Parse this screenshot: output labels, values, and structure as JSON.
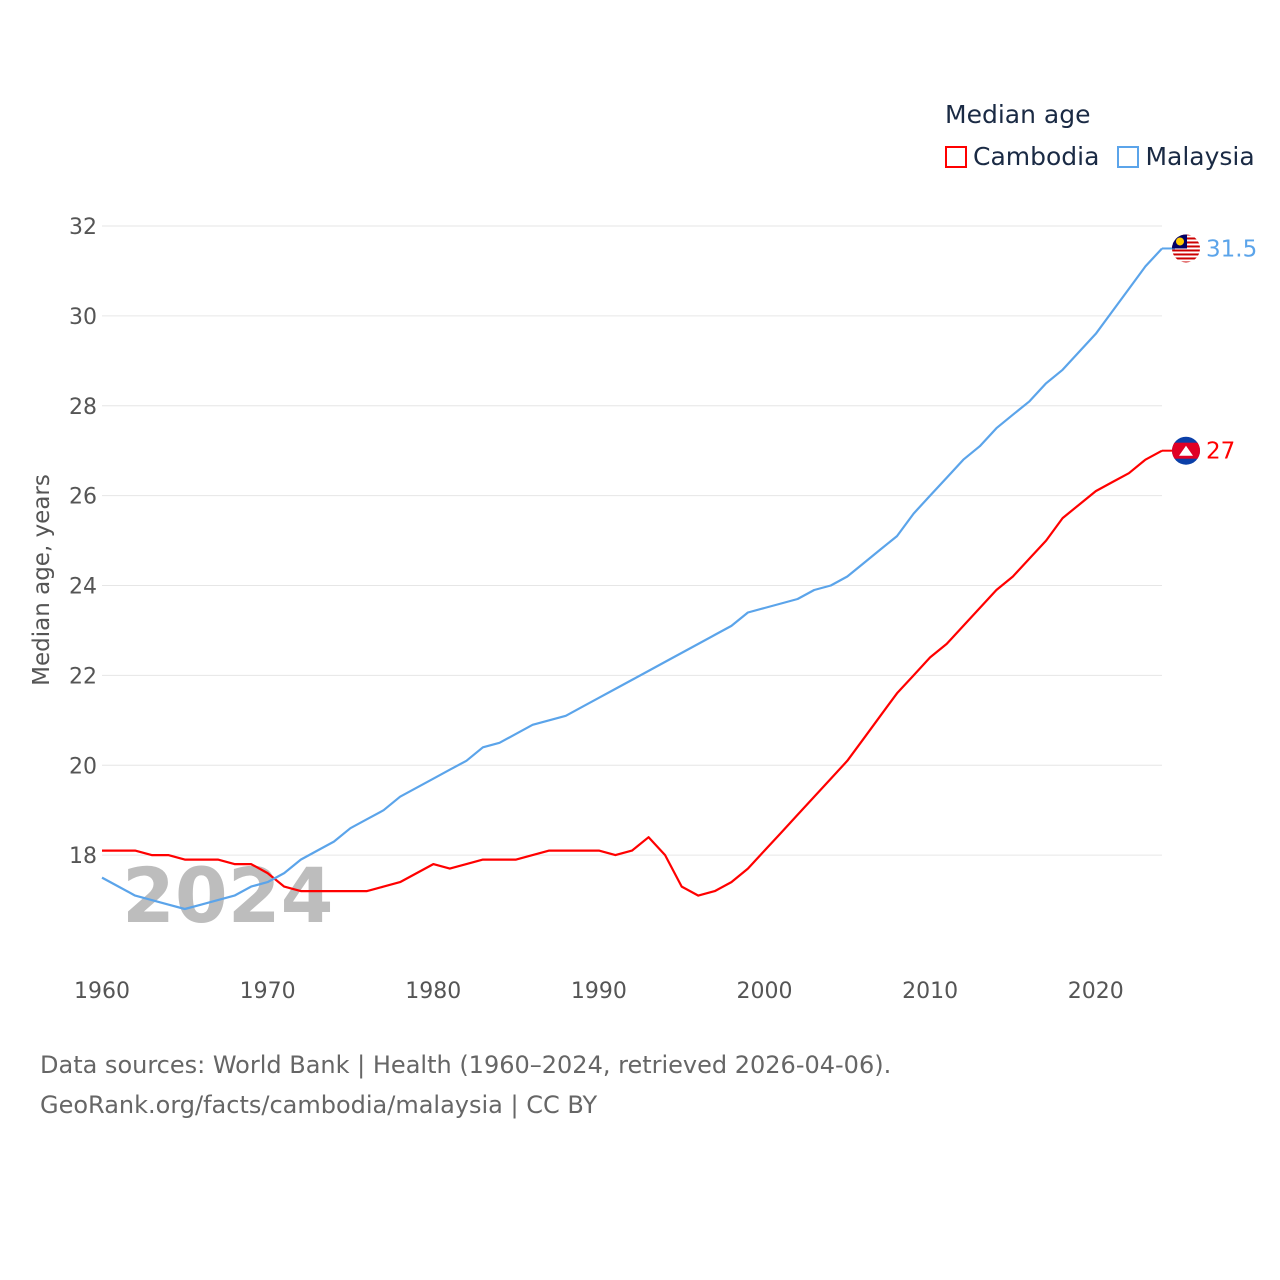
{
  "chart_data": {
    "type": "line",
    "title": "Median age",
    "xlabel": "",
    "ylabel": "Median age, years",
    "xlim": [
      1960,
      2024
    ],
    "ylim": [
      16,
      32
    ],
    "x_ticks": [
      1960,
      1970,
      1980,
      1990,
      2000,
      2010,
      2020
    ],
    "y_ticks": [
      18,
      20,
      22,
      24,
      26,
      28,
      30,
      32
    ],
    "grid": true,
    "legend_position": "top-right",
    "watermark_year": "2024",
    "x": [
      1960,
      1961,
      1962,
      1963,
      1964,
      1965,
      1966,
      1967,
      1968,
      1969,
      1970,
      1971,
      1972,
      1973,
      1974,
      1975,
      1976,
      1977,
      1978,
      1979,
      1980,
      1981,
      1982,
      1983,
      1984,
      1985,
      1986,
      1987,
      1988,
      1989,
      1990,
      1991,
      1992,
      1993,
      1994,
      1995,
      1996,
      1997,
      1998,
      1999,
      2000,
      2001,
      2002,
      2003,
      2004,
      2005,
      2006,
      2007,
      2008,
      2009,
      2010,
      2011,
      2012,
      2013,
      2014,
      2015,
      2016,
      2017,
      2018,
      2019,
      2020,
      2021,
      2022,
      2023,
      2024
    ],
    "series": [
      {
        "name": "Cambodia",
        "color": "#ff0000",
        "end_label": "27",
        "values": [
          18.1,
          18.1,
          18.1,
          18.0,
          18.0,
          17.9,
          17.9,
          17.9,
          17.8,
          17.8,
          17.6,
          17.3,
          17.2,
          17.2,
          17.2,
          17.2,
          17.2,
          17.3,
          17.4,
          17.6,
          17.8,
          17.7,
          17.8,
          17.9,
          17.9,
          17.9,
          18.0,
          18.1,
          18.1,
          18.1,
          18.1,
          18.0,
          18.1,
          18.4,
          18.0,
          17.3,
          17.1,
          17.2,
          17.4,
          17.7,
          18.1,
          18.5,
          18.9,
          19.3,
          19.7,
          20.1,
          20.6,
          21.1,
          21.6,
          22.0,
          22.4,
          22.7,
          23.1,
          23.5,
          23.9,
          24.2,
          24.6,
          25.0,
          25.5,
          25.8,
          26.1,
          26.3,
          26.5,
          26.8,
          27.0
        ]
      },
      {
        "name": "Malaysia",
        "color": "#5ba4ea",
        "end_label": "31.5",
        "values": [
          17.5,
          17.3,
          17.1,
          17.0,
          16.9,
          16.8,
          16.9,
          17.0,
          17.1,
          17.3,
          17.4,
          17.6,
          17.9,
          18.1,
          18.3,
          18.6,
          18.8,
          19.0,
          19.3,
          19.5,
          19.7,
          19.9,
          20.1,
          20.4,
          20.5,
          20.7,
          20.9,
          21.0,
          21.1,
          21.3,
          21.5,
          21.7,
          21.9,
          22.1,
          22.3,
          22.5,
          22.7,
          22.9,
          23.1,
          23.4,
          23.5,
          23.6,
          23.7,
          23.9,
          24.0,
          24.2,
          24.5,
          24.8,
          25.1,
          25.6,
          26.0,
          26.4,
          26.8,
          27.1,
          27.5,
          27.8,
          28.1,
          28.5,
          28.8,
          29.2,
          29.6,
          30.1,
          30.6,
          31.1,
          31.5
        ]
      }
    ]
  },
  "footer": {
    "line1": "Data sources: World Bank | Health (1960–2024, retrieved 2026-04-06).",
    "line2": "GeoRank.org/facts/cambodia/malaysia | CC BY"
  }
}
